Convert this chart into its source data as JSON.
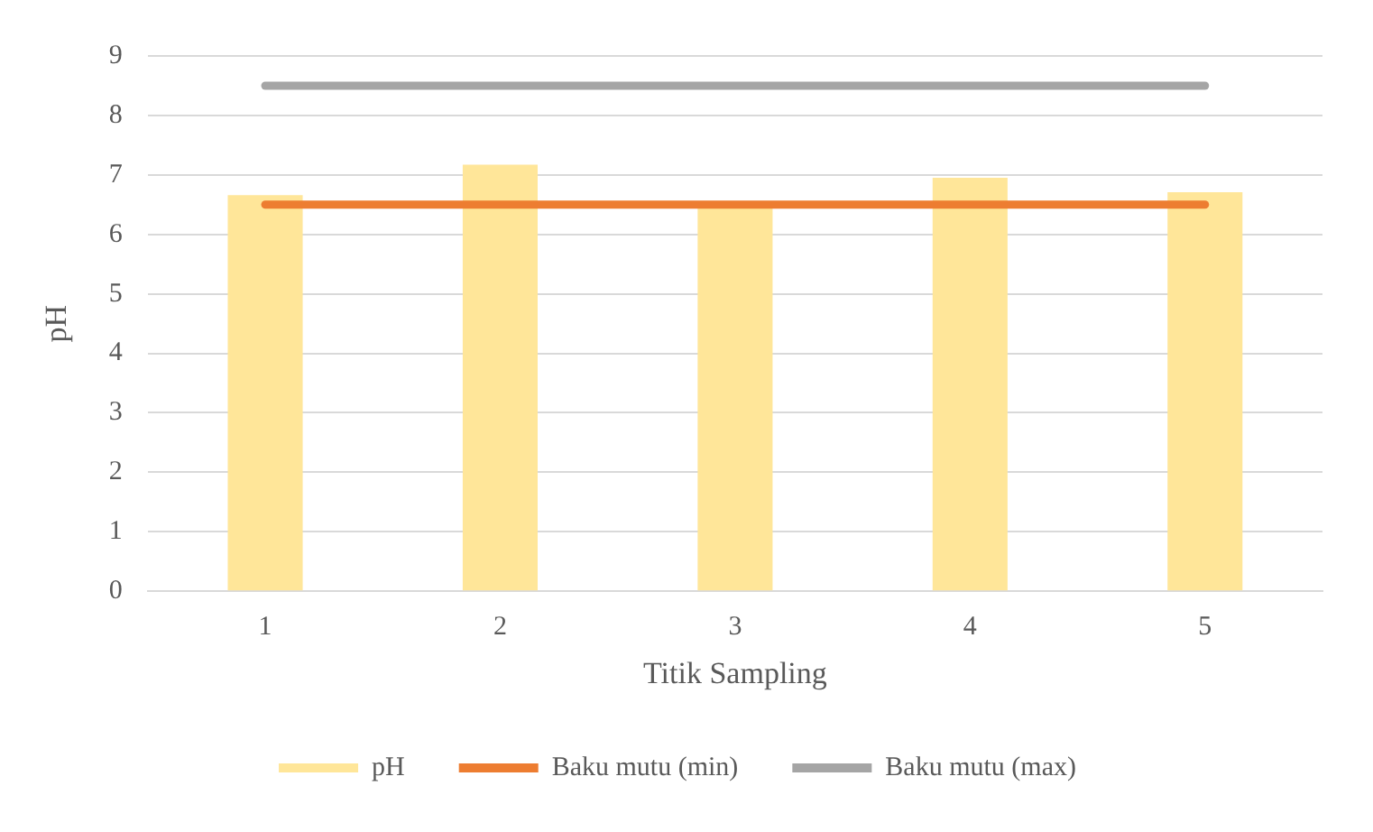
{
  "chart_data": {
    "type": "bar",
    "xlabel": "Titik Sampling",
    "ylabel": "pH",
    "categories": [
      "1",
      "2",
      "3",
      "4",
      "5"
    ],
    "series": [
      {
        "name": "pH",
        "color": "#ffe699",
        "values": [
          6.66,
          7.17,
          6.45,
          6.95,
          6.71
        ]
      },
      {
        "name": "Baku mutu (min)",
        "type": "line",
        "color": "#ed7d31",
        "values": [
          6.5,
          6.5,
          6.5,
          6.5,
          6.5
        ]
      },
      {
        "name": "Baku mutu (max)",
        "type": "line",
        "color": "#a5a5a5",
        "values": [
          8.5,
          8.5,
          8.5,
          8.5,
          8.5
        ]
      }
    ],
    "ylim": [
      0,
      9
    ],
    "yticks": [
      0,
      1,
      2,
      3,
      4,
      5,
      6,
      7,
      8,
      9
    ],
    "grid": "y",
    "legend": "bottom",
    "marker": "none"
  }
}
